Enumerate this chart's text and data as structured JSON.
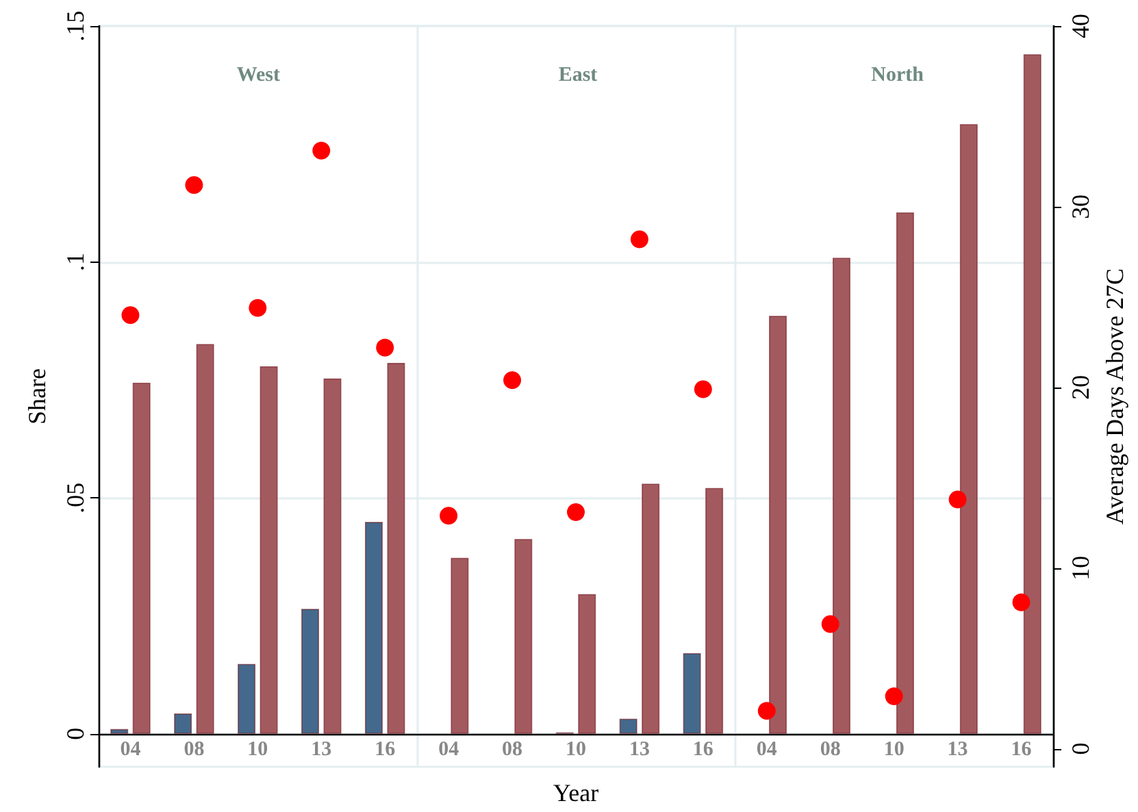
{
  "chart_data": {
    "type": "bar",
    "xlabel": "Year",
    "ylabel": "Share",
    "y2label": "Average Days Above 27C",
    "annotations": [
      "West",
      "East",
      "North"
    ],
    "categories": [
      "04",
      "08",
      "10",
      "13",
      "16",
      "04",
      "08",
      "10",
      "13",
      "16",
      "04",
      "08",
      "10",
      "13",
      "16"
    ],
    "series": [
      {
        "color": "#44698c",
        "values": [
          0.001,
          0.0043,
          0.0148,
          0.0265,
          0.0449,
          null,
          null,
          0.0003,
          0.0032,
          0.0171,
          null,
          null,
          null,
          null,
          null
        ]
      },
      {
        "color": "#a35a5f",
        "values": [
          0.0744,
          0.0826,
          0.0779,
          0.0753,
          0.0786,
          0.0373,
          0.0413,
          0.0296,
          0.053,
          0.0521,
          0.0886,
          0.1009,
          0.1105,
          0.1292,
          0.144
        ]
      },
      {
        "type": "scatter",
        "axis": "y2",
        "color": "#ff0000",
        "values": [
          24.0,
          31.2,
          24.4,
          33.1,
          22.2,
          12.9,
          20.4,
          13.1,
          28.2,
          19.9,
          2.1,
          6.9,
          2.9,
          13.8,
          8.1
        ]
      }
    ],
    "ylim": [
      -0.007,
      0.15
    ],
    "yticks": [
      0,
      {
        "value": 0.05,
        "label": ".05"
      },
      {
        "value": 0.1,
        "label": ".1"
      },
      {
        "value": 0.15,
        "label": ".15"
      }
    ],
    "y2lim": [
      -1,
      40
    ],
    "y2ticks": [
      0,
      10,
      20,
      30,
      40
    ],
    "grid": "y",
    "marker": "circle"
  }
}
